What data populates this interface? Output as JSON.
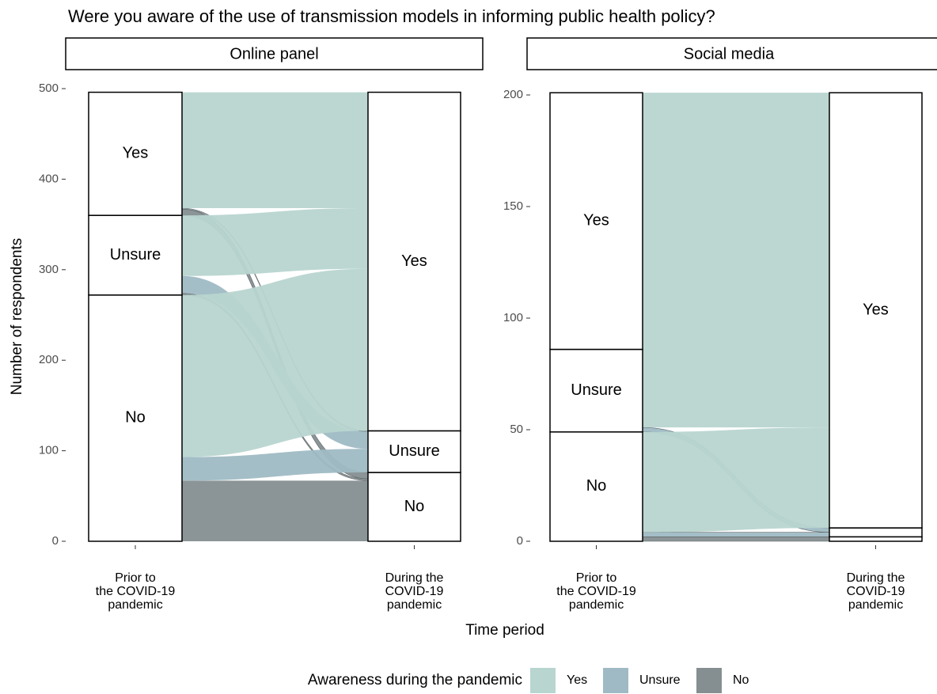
{
  "title": "Were you aware of the use of transmission models in informing public health policy?",
  "xlabel": "Time period",
  "ylabel": "Number of respondents",
  "legend": {
    "title": "Awareness during the pandemic",
    "series": [
      {
        "name": "Yes",
        "color": "#b8d5d0"
      },
      {
        "name": "Unsure",
        "color": "#9fbac4"
      },
      {
        "name": "No",
        "color": "#858f91"
      }
    ]
  },
  "chart_data": [
    {
      "type": "alluvial",
      "panel": "Online panel",
      "categories": [
        "Prior to\nthe COVID-19\npandemic",
        "During the\nCOVID-19\npandemic"
      ],
      "values": [
        [
          128,
          1,
          7
        ],
        [
          67,
          19,
          2
        ],
        [
          179,
          26,
          67
        ]
      ],
      "ylim": [
        0,
        500
      ],
      "yticks": [
        0,
        100,
        200,
        300,
        400,
        500
      ]
    },
    {
      "type": "alluvial",
      "panel": "Social media",
      "categories": [
        "Prior to\nthe COVID-19\npandemic",
        "During the\nCOVID-19\npandemic"
      ],
      "values": [
        [
          115,
          0,
          0
        ],
        [
          35,
          2,
          0
        ],
        [
          45,
          2,
          2
        ]
      ],
      "ylim": [
        0,
        200
      ],
      "yticks": [
        0,
        50,
        100,
        150,
        200
      ]
    }
  ]
}
